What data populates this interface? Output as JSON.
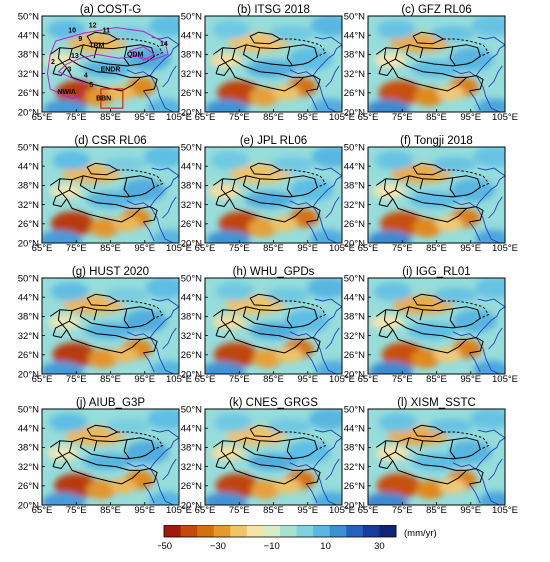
{
  "figure": {
    "panels": [
      {
        "id": "a",
        "title": "(a) COST-G"
      },
      {
        "id": "b",
        "title": "(b) ITSG 2018"
      },
      {
        "id": "c",
        "title": "(c) GFZ RL06"
      },
      {
        "id": "d",
        "title": "(d) CSR RL06"
      },
      {
        "id": "e",
        "title": "(e) JPL RL06"
      },
      {
        "id": "f",
        "title": "(f) Tongji 2018"
      },
      {
        "id": "g",
        "title": "(g) HUST 2020"
      },
      {
        "id": "h",
        "title": "(h) WHU_GPDs"
      },
      {
        "id": "i",
        "title": "(i) IGG_RL01"
      },
      {
        "id": "j",
        "title": "(j) AIUB_G3P"
      },
      {
        "id": "k",
        "title": "(k) CNES_GRGS"
      },
      {
        "id": "l",
        "title": "(l) XISM_SSTC"
      }
    ],
    "lat_ticks": [
      "50°N",
      "44°N",
      "38°N",
      "32°N",
      "26°N",
      "20°N"
    ],
    "lon_ticks": [
      "65°E",
      "75°E",
      "85°E",
      "95°E",
      "105°E"
    ],
    "region_labels": [
      "TRM",
      "QDM",
      "ENDR",
      "NWIA",
      "BBN",
      "10",
      "12",
      "11",
      "9",
      "13",
      "14",
      "2",
      "3",
      "4",
      "5"
    ],
    "colorbar": {
      "ticks": [
        "−50",
        "−30",
        "−10",
        "10",
        "30"
      ],
      "unit": "(mm/yr)",
      "colors": [
        "#a11a0c",
        "#c24a0c",
        "#d4710f",
        "#e39a2a",
        "#efc56a",
        "#f6e3a6",
        "#d6eec7",
        "#a7e1d1",
        "#7fd1dd",
        "#5ab7e2",
        "#3c8fd3",
        "#2562bd",
        "#173d9b",
        "#0d2477"
      ]
    },
    "colors": {
      "boundary": "#000000",
      "river": "#1f3fbf",
      "region_outline": "#c020c8",
      "region_box": "#d42020"
    }
  }
}
